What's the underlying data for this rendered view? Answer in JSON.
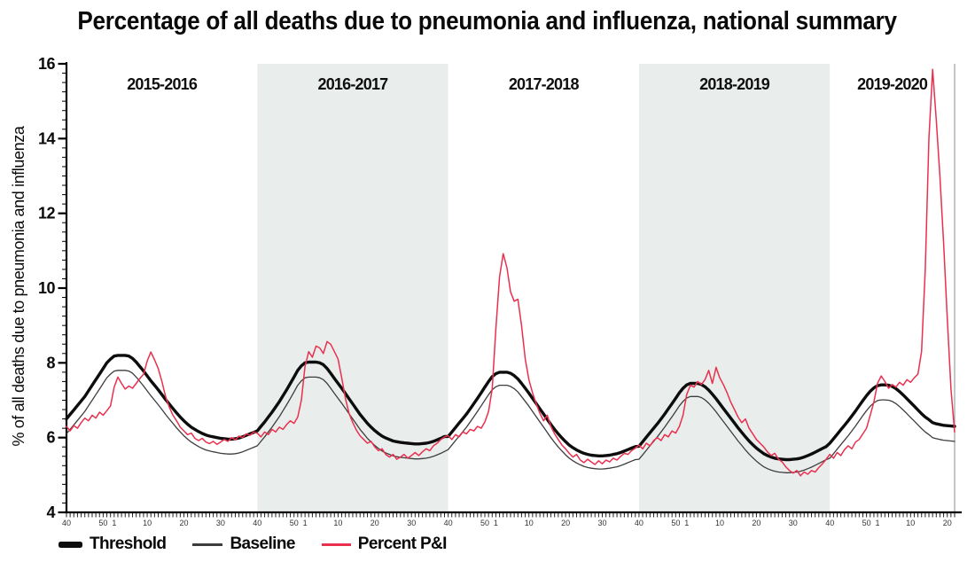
{
  "title": "Percentage of all deaths due to pneumonia and influenza, national summary",
  "y_axis": {
    "label": "% of all deaths due to pneumonia and influenza",
    "min": 4,
    "max": 16,
    "major_step": 2,
    "minor_step": 0.25,
    "tick_labels": [
      "4",
      "6",
      "8",
      "10",
      "12",
      "14",
      "16"
    ]
  },
  "x_axis": {
    "unit": "MMWR week",
    "week_labels": [
      {
        "idx": 0,
        "label": "40"
      },
      {
        "idx": 10,
        "label": "50"
      },
      {
        "idx": 13,
        "label": "1"
      },
      {
        "idx": 22,
        "label": "10"
      },
      {
        "idx": 32,
        "label": "20"
      },
      {
        "idx": 42,
        "label": "30"
      }
    ]
  },
  "colors": {
    "band": "#e9eeec",
    "threshold": "#0d0d0d",
    "baseline": "#3d3d3d",
    "percent_pi": "#e9304f",
    "axis": "#000000",
    "right_border": "#9aa0a0"
  },
  "chart_data": {
    "type": "line",
    "title": "Percentage of all deaths due to pneumonia and influenza, national summary",
    "ylabel": "% of all deaths due to pneumonia and influenza",
    "ylim": [
      4,
      16
    ],
    "x_description": "Weekly values; each season runs MMWR week 40 through week 39 of the next year (2019-2020 shown through week 22)",
    "legend_position": "bottom-left",
    "grid": false,
    "seasons": [
      {
        "label": "2015-2016",
        "shaded": false,
        "n_weeks": 52
      },
      {
        "label": "2016-2017",
        "shaded": true,
        "n_weeks": 52
      },
      {
        "label": "2017-2018",
        "shaded": false,
        "n_weeks": 52
      },
      {
        "label": "2018-2019",
        "shaded": true,
        "n_weeks": 52
      },
      {
        "label": "2019-2020",
        "shaded": false,
        "n_weeks": 35
      }
    ],
    "series": [
      {
        "name": "Threshold",
        "color": "#0d0d0d",
        "stroke_width": 3.4,
        "values_by_season": [
          [
            6.5,
            6.62,
            6.74,
            6.86,
            6.98,
            7.1,
            7.25,
            7.4,
            7.55,
            7.7,
            7.85,
            8.0,
            8.1,
            8.18,
            8.2,
            8.2,
            8.2,
            8.18,
            8.12,
            8.02,
            7.9,
            7.78,
            7.65,
            7.52,
            7.4,
            7.28,
            7.15,
            7.02,
            6.9,
            6.78,
            6.66,
            6.55,
            6.45,
            6.36,
            6.28,
            6.22,
            6.16,
            6.11,
            6.07,
            6.04,
            6.02,
            6.0,
            5.98,
            5.97,
            5.96,
            5.96,
            5.97,
            5.99,
            6.02,
            6.06,
            6.1,
            6.14
          ],
          [
            6.18,
            6.3,
            6.42,
            6.55,
            6.68,
            6.82,
            6.96,
            7.12,
            7.28,
            7.45,
            7.62,
            7.8,
            7.92,
            8.0,
            8.02,
            8.02,
            8.02,
            8.0,
            7.95,
            7.85,
            7.72,
            7.58,
            7.45,
            7.32,
            7.18,
            7.04,
            6.9,
            6.76,
            6.62,
            6.5,
            6.38,
            6.28,
            6.19,
            6.11,
            6.04,
            5.99,
            5.95,
            5.91,
            5.89,
            5.87,
            5.86,
            5.85,
            5.84,
            5.83,
            5.83,
            5.84,
            5.85,
            5.87,
            5.9,
            5.94,
            5.98,
            6.03
          ],
          [
            6.03,
            6.15,
            6.27,
            6.39,
            6.51,
            6.63,
            6.77,
            6.91,
            7.05,
            7.2,
            7.35,
            7.5,
            7.63,
            7.71,
            7.75,
            7.75,
            7.75,
            7.72,
            7.66,
            7.57,
            7.45,
            7.32,
            7.19,
            7.05,
            6.91,
            6.77,
            6.63,
            6.49,
            6.35,
            6.22,
            6.1,
            5.99,
            5.89,
            5.8,
            5.73,
            5.67,
            5.62,
            5.58,
            5.55,
            5.53,
            5.52,
            5.51,
            5.51,
            5.52,
            5.53,
            5.55,
            5.57,
            5.6,
            5.64,
            5.68,
            5.72,
            5.76
          ],
          [
            5.77,
            5.89,
            6.01,
            6.13,
            6.25,
            6.37,
            6.5,
            6.63,
            6.77,
            6.91,
            7.05,
            7.2,
            7.32,
            7.41,
            7.45,
            7.45,
            7.45,
            7.42,
            7.36,
            7.27,
            7.16,
            7.04,
            6.91,
            6.78,
            6.65,
            6.52,
            6.39,
            6.26,
            6.14,
            6.02,
            5.91,
            5.81,
            5.72,
            5.64,
            5.57,
            5.52,
            5.48,
            5.45,
            5.43,
            5.42,
            5.41,
            5.41,
            5.42,
            5.43,
            5.45,
            5.48,
            5.52,
            5.56,
            5.61,
            5.66,
            5.71,
            5.76
          ],
          [
            5.85,
            5.97,
            6.09,
            6.21,
            6.33,
            6.45,
            6.58,
            6.71,
            6.85,
            6.99,
            7.12,
            7.24,
            7.33,
            7.39,
            7.41,
            7.41,
            7.4,
            7.37,
            7.31,
            7.23,
            7.14,
            7.04,
            6.94,
            6.84,
            6.74,
            6.64,
            6.55,
            6.48,
            6.4,
            6.37,
            6.35,
            6.33,
            6.32,
            6.31,
            6.3
          ]
        ]
      },
      {
        "name": "Baseline",
        "color": "#3d3d3d",
        "stroke_width": 1.3,
        "values_by_season": [
          [
            6.1,
            6.22,
            6.34,
            6.46,
            6.58,
            6.7,
            6.85,
            7.0,
            7.15,
            7.3,
            7.45,
            7.6,
            7.7,
            7.78,
            7.8,
            7.8,
            7.8,
            7.78,
            7.72,
            7.62,
            7.5,
            7.38,
            7.25,
            7.12,
            7.0,
            6.88,
            6.75,
            6.62,
            6.5,
            6.38,
            6.26,
            6.15,
            6.05,
            5.96,
            5.88,
            5.82,
            5.76,
            5.71,
            5.67,
            5.64,
            5.62,
            5.6,
            5.58,
            5.57,
            5.56,
            5.56,
            5.57,
            5.59,
            5.62,
            5.66,
            5.7,
            5.74
          ],
          [
            5.78,
            5.9,
            6.02,
            6.15,
            6.28,
            6.42,
            6.56,
            6.72,
            6.88,
            7.05,
            7.22,
            7.4,
            7.52,
            7.6,
            7.62,
            7.62,
            7.62,
            7.6,
            7.55,
            7.45,
            7.32,
            7.18,
            7.05,
            6.92,
            6.78,
            6.64,
            6.5,
            6.36,
            6.22,
            6.1,
            5.98,
            5.88,
            5.79,
            5.71,
            5.64,
            5.59,
            5.55,
            5.51,
            5.49,
            5.47,
            5.46,
            5.45,
            5.44,
            5.43,
            5.43,
            5.44,
            5.45,
            5.47,
            5.5,
            5.54,
            5.58,
            5.63
          ],
          [
            5.68,
            5.8,
            5.92,
            6.04,
            6.16,
            6.28,
            6.42,
            6.56,
            6.7,
            6.85,
            7.0,
            7.15,
            7.28,
            7.36,
            7.4,
            7.4,
            7.4,
            7.37,
            7.31,
            7.22,
            7.1,
            6.97,
            6.84,
            6.7,
            6.56,
            6.42,
            6.28,
            6.14,
            6.0,
            5.87,
            5.75,
            5.64,
            5.54,
            5.45,
            5.38,
            5.32,
            5.27,
            5.23,
            5.2,
            5.18,
            5.17,
            5.16,
            5.16,
            5.17,
            5.18,
            5.2,
            5.22,
            5.25,
            5.29,
            5.33,
            5.37,
            5.41
          ],
          [
            5.42,
            5.54,
            5.66,
            5.78,
            5.9,
            6.02,
            6.15,
            6.28,
            6.42,
            6.56,
            6.7,
            6.85,
            6.97,
            7.06,
            7.1,
            7.1,
            7.1,
            7.07,
            7.01,
            6.92,
            6.81,
            6.69,
            6.56,
            6.43,
            6.3,
            6.17,
            6.04,
            5.91,
            5.79,
            5.67,
            5.56,
            5.46,
            5.37,
            5.29,
            5.22,
            5.17,
            5.13,
            5.1,
            5.08,
            5.07,
            5.06,
            5.06,
            5.07,
            5.08,
            5.1,
            5.13,
            5.17,
            5.21,
            5.26,
            5.31,
            5.36,
            5.41
          ],
          [
            5.45,
            5.57,
            5.69,
            5.81,
            5.93,
            6.05,
            6.18,
            6.31,
            6.45,
            6.59,
            6.72,
            6.84,
            6.93,
            6.99,
            7.01,
            7.01,
            7.0,
            6.97,
            6.91,
            6.83,
            6.74,
            6.64,
            6.54,
            6.44,
            6.34,
            6.24,
            6.15,
            6.08,
            6.0,
            5.97,
            5.95,
            5.93,
            5.92,
            5.91,
            5.9
          ]
        ]
      },
      {
        "name": "Percent P&I",
        "color": "#e9304f",
        "stroke_width": 1.5,
        "values_by_season": [
          [
            6.3,
            6.18,
            6.32,
            6.25,
            6.4,
            6.52,
            6.45,
            6.6,
            6.52,
            6.68,
            6.6,
            6.72,
            6.85,
            7.35,
            7.62,
            7.45,
            7.3,
            7.38,
            7.32,
            7.45,
            7.58,
            7.7,
            8.05,
            8.29,
            8.08,
            7.85,
            7.5,
            7.1,
            6.82,
            6.6,
            6.45,
            6.28,
            6.18,
            6.08,
            6.12,
            5.98,
            5.92,
            5.98,
            5.88,
            5.84,
            5.9,
            5.82,
            5.88,
            5.95,
            5.9,
            6.0,
            5.94,
            6.04,
            6.0,
            6.1,
            6.06,
            6.15
          ],
          [
            6.12,
            6.02,
            6.15,
            6.08,
            6.22,
            6.15,
            6.28,
            6.22,
            6.35,
            6.45,
            6.38,
            6.55,
            7.0,
            7.9,
            8.3,
            8.15,
            8.45,
            8.4,
            8.25,
            8.57,
            8.5,
            8.3,
            8.1,
            7.6,
            7.05,
            6.65,
            6.4,
            6.2,
            6.05,
            5.95,
            5.85,
            5.9,
            5.75,
            5.65,
            5.7,
            5.55,
            5.48,
            5.55,
            5.42,
            5.48,
            5.55,
            5.45,
            5.52,
            5.6,
            5.52,
            5.62,
            5.7,
            5.65,
            5.78,
            5.85,
            5.95,
            6.02
          ],
          [
            6.05,
            5.95,
            6.08,
            6.02,
            6.15,
            6.1,
            6.22,
            6.18,
            6.3,
            6.25,
            6.42,
            6.7,
            7.3,
            8.9,
            10.3,
            10.92,
            10.55,
            9.9,
            9.65,
            9.7,
            9.0,
            8.1,
            7.55,
            7.2,
            6.9,
            6.65,
            6.45,
            6.6,
            6.3,
            6.1,
            5.95,
            5.8,
            5.7,
            5.58,
            5.48,
            5.55,
            5.4,
            5.33,
            5.42,
            5.35,
            5.28,
            5.38,
            5.3,
            5.4,
            5.35,
            5.45,
            5.4,
            5.5,
            5.58,
            5.55,
            5.65,
            5.72
          ],
          [
            5.8,
            5.7,
            5.85,
            5.78,
            5.92,
            6.0,
            5.92,
            6.08,
            6.02,
            6.18,
            6.12,
            6.3,
            6.6,
            7.15,
            7.4,
            7.35,
            7.5,
            7.42,
            7.55,
            7.8,
            7.45,
            7.88,
            7.6,
            7.42,
            7.2,
            6.95,
            6.75,
            6.55,
            6.4,
            6.5,
            6.25,
            6.1,
            5.95,
            5.85,
            5.75,
            5.62,
            5.52,
            5.58,
            5.42,
            5.35,
            5.22,
            5.12,
            5.05,
            5.12,
            4.98,
            5.08,
            5.02,
            5.12,
            5.08,
            5.2,
            5.3,
            5.42
          ],
          [
            5.55,
            5.45,
            5.6,
            5.52,
            5.68,
            5.78,
            5.7,
            5.88,
            5.95,
            6.1,
            6.25,
            6.6,
            6.95,
            7.45,
            7.65,
            7.5,
            7.32,
            7.42,
            7.35,
            7.48,
            7.4,
            7.55,
            7.48,
            7.6,
            7.7,
            8.3,
            10.5,
            14.0,
            15.85,
            14.5,
            13.0,
            11.2,
            9.2,
            7.3,
            6.15
          ]
        ]
      }
    ]
  }
}
